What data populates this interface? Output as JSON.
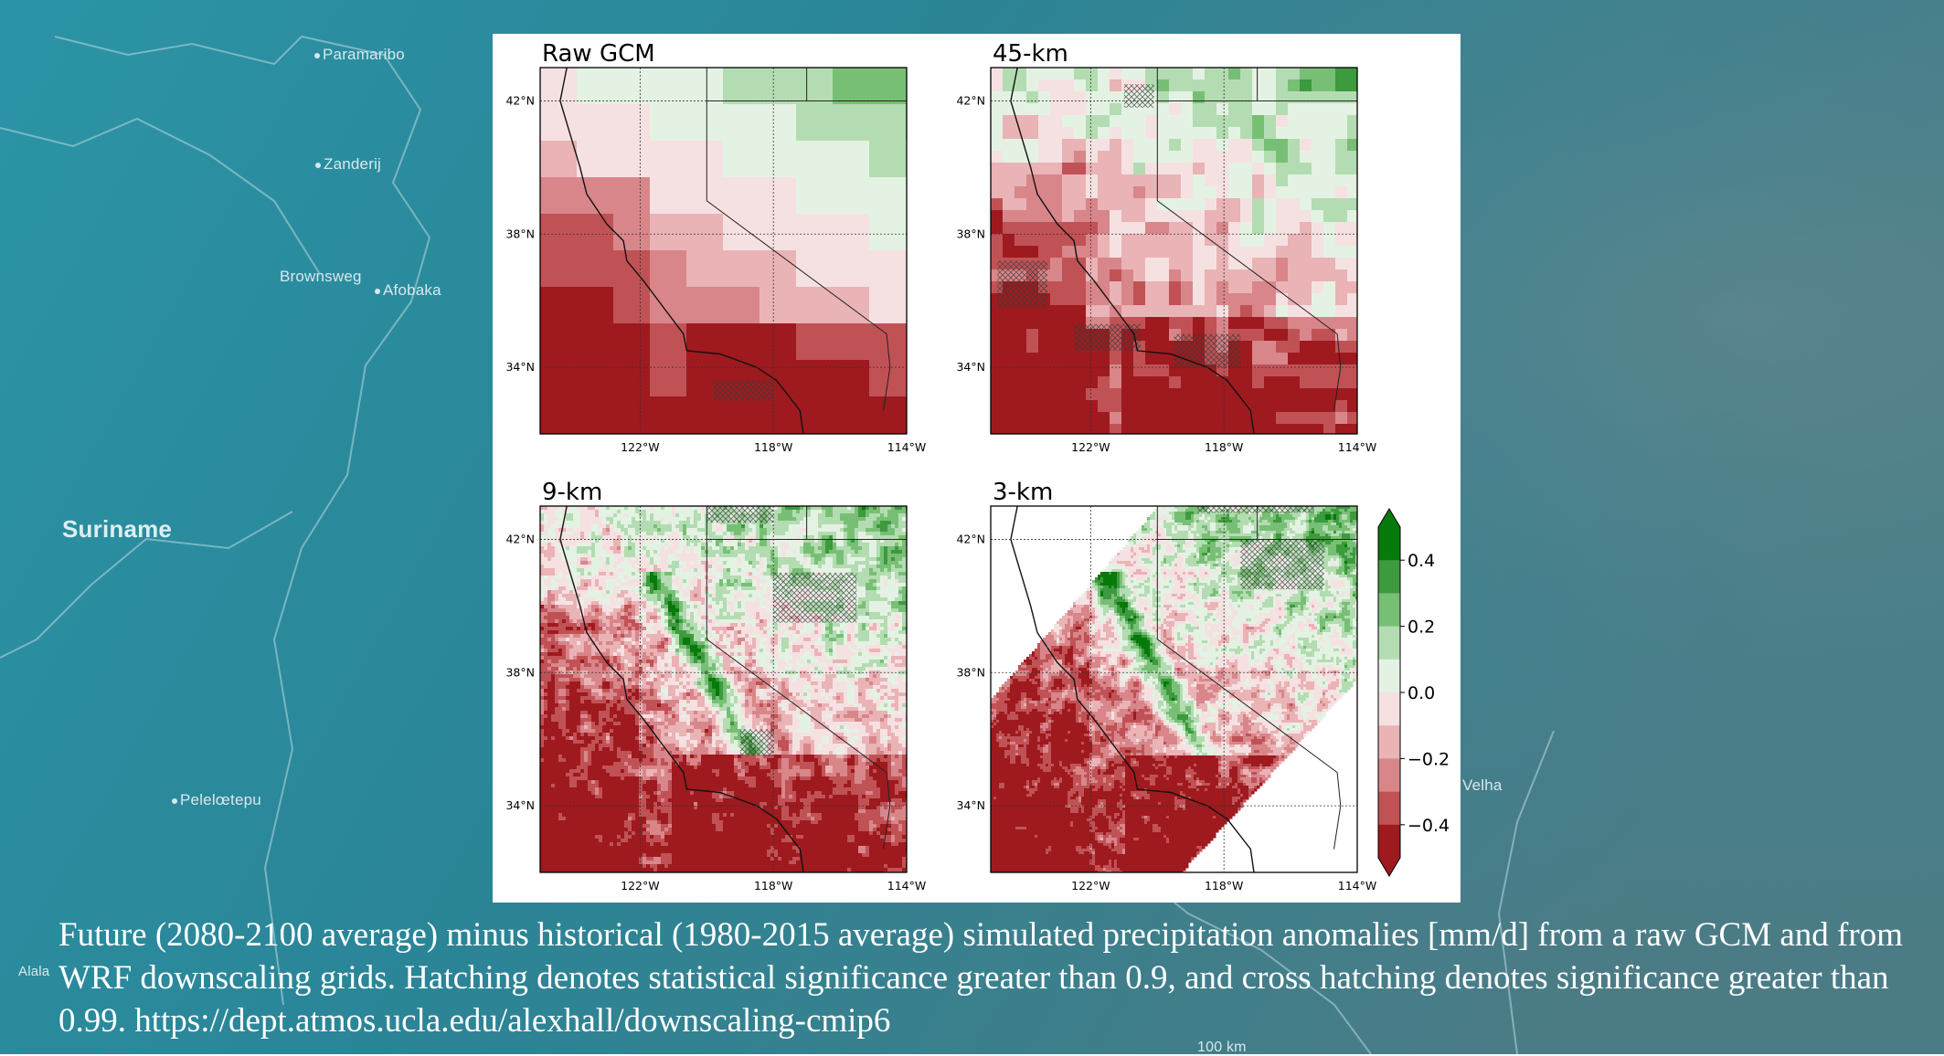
{
  "background_map": {
    "labels": [
      "Paramaribo",
      "Zanderij",
      "Brownsweg",
      "Afobaka",
      "Suriname",
      "Pelelœtepu",
      "Velha",
      "Alala",
      "100 km"
    ]
  },
  "caption": {
    "text": "Future (2080-2100 average) minus historical (1980-2015 average) simulated precipitation anomalies [mm/d] from a raw GCM and from WRF downscaling grids. Hatching denotes statistical significance greater than 0.9, and cross hatching denotes significance greater than 0.99. https://dept.atmos.ucla.edu/alexhall/downscaling-cmip6"
  },
  "chart_data": [
    {
      "type": "heatmap",
      "title": "Raw GCM",
      "x_ticks": [
        "122°W",
        "118°W",
        "114°W"
      ],
      "y_ticks": [
        "42°N",
        "38°N",
        "34°N"
      ],
      "xlim": [
        -125,
        -114
      ],
      "ylim": [
        32,
        43
      ]
    },
    {
      "type": "heatmap",
      "title": "45-km",
      "x_ticks": [
        "122°W",
        "118°W",
        "114°W"
      ],
      "y_ticks": [
        "42°N",
        "38°N",
        "34°N"
      ],
      "xlim": [
        -125,
        -114
      ],
      "ylim": [
        32,
        43
      ]
    },
    {
      "type": "heatmap",
      "title": "9-km",
      "x_ticks": [
        "122°W",
        "118°W",
        "114°W"
      ],
      "y_ticks": [
        "42°N",
        "38°N",
        "34°N"
      ],
      "xlim": [
        -125,
        -114
      ],
      "ylim": [
        32,
        43
      ]
    },
    {
      "type": "heatmap",
      "title": "3-km",
      "x_ticks": [
        "122°W",
        "118°W",
        "114°W"
      ],
      "y_ticks": [
        "42°N",
        "38°N",
        "34°N"
      ],
      "xlim": [
        -125,
        -114
      ],
      "ylim": [
        32,
        43
      ]
    }
  ],
  "colorbar": {
    "ticks": [
      "0.4",
      "0.2",
      "0.0",
      "−0.2",
      "−0.4"
    ],
    "tick_values": [
      0.4,
      0.2,
      0.0,
      -0.2,
      -0.4
    ],
    "range": [
      -0.5,
      0.5
    ],
    "extend": "both",
    "colors": [
      "#9e1a1e",
      "#c05256",
      "#d8868a",
      "#eab3b6",
      "#f6e1e2",
      "#e4f2e3",
      "#b4dcb2",
      "#78bf76",
      "#3d9a3e",
      "#067a0a"
    ]
  }
}
